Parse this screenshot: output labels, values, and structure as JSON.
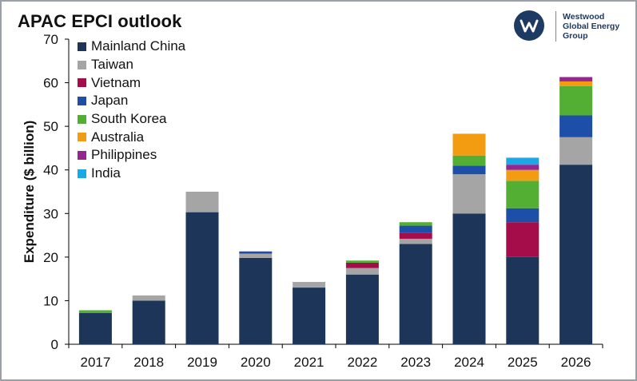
{
  "title": "APAC EPCI outlook",
  "logo": {
    "lines": [
      "Westwood",
      "Global Energy",
      "Group"
    ],
    "mark": "w-monogram-icon"
  },
  "chart_data": {
    "type": "bar",
    "stacked": true,
    "title": "APAC EPCI outlook",
    "xlabel": "",
    "ylabel": "Expenditure ($ billion)",
    "ylim": [
      0,
      70
    ],
    "yticks": [
      0,
      10,
      20,
      30,
      40,
      50,
      60,
      70
    ],
    "grid": false,
    "legend_position": "top-left",
    "categories": [
      "2017",
      "2018",
      "2019",
      "2020",
      "2021",
      "2022",
      "2023",
      "2024",
      "2025",
      "2026"
    ],
    "series": [
      {
        "name": "Mainland China",
        "color": "#1c3558",
        "values": [
          7.2,
          10.0,
          30.3,
          19.8,
          13.0,
          16.0,
          23.0,
          30.0,
          20.0,
          41.2
        ]
      },
      {
        "name": "Taiwan",
        "color": "#a5a5a5",
        "values": [
          0.0,
          1.2,
          4.7,
          1.0,
          1.3,
          1.5,
          1.2,
          9.0,
          0.0,
          6.3
        ]
      },
      {
        "name": "Vietnam",
        "color": "#a50d4a",
        "values": [
          0.0,
          0.0,
          0.0,
          0.0,
          0.0,
          1.2,
          1.4,
          0.0,
          8.0,
          0.0
        ]
      },
      {
        "name": "Japan",
        "color": "#1d4fa8",
        "values": [
          0.0,
          0.0,
          0.0,
          0.5,
          0.0,
          0.0,
          1.6,
          2.0,
          3.2,
          5.0
        ]
      },
      {
        "name": "South Korea",
        "color": "#53ae34",
        "values": [
          0.6,
          0.0,
          0.0,
          0.0,
          0.0,
          0.5,
          0.8,
          2.3,
          6.3,
          6.7
        ]
      },
      {
        "name": "Australia",
        "color": "#f39c12",
        "values": [
          0.0,
          0.0,
          0.0,
          0.0,
          0.0,
          0.0,
          0.0,
          5.0,
          2.5,
          1.1
        ]
      },
      {
        "name": "Philippines",
        "color": "#93278f",
        "values": [
          0.0,
          0.0,
          0.0,
          0.0,
          0.0,
          0.0,
          0.0,
          0.0,
          1.2,
          1.0
        ]
      },
      {
        "name": "India",
        "color": "#1ba8e6",
        "values": [
          0.0,
          0.0,
          0.0,
          0.0,
          0.0,
          0.0,
          0.0,
          0.0,
          1.6,
          0.0
        ]
      }
    ]
  }
}
